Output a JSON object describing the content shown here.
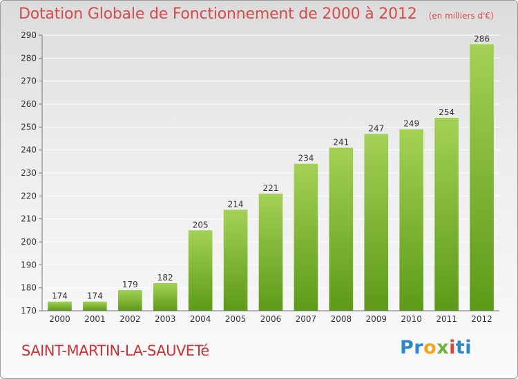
{
  "header": {
    "title": "Dotation Globale de Fonctionnement de 2000 à 2012",
    "unit": "(en milliers d'€)"
  },
  "footer": {
    "commune": "SAINT-MARTIN-LA-SAUVETé",
    "logo": {
      "text": "Proxiti",
      "letters": [
        "P",
        "r",
        "o",
        "x",
        "i",
        "t",
        "i"
      ],
      "colors": [
        "#2f86c8",
        "#2f86c8",
        "#f2a51c",
        "#6db33f",
        "#e0473f",
        "#2f86c8",
        "#2f86c8"
      ]
    }
  },
  "chart_data": {
    "type": "bar",
    "title": "Dotation Globale de Fonctionnement de 2000 à 2012",
    "subtitle": "(en milliers d'€)",
    "categories": [
      "2000",
      "2001",
      "2002",
      "2003",
      "2004",
      "2005",
      "2006",
      "2007",
      "2008",
      "2009",
      "2010",
      "2011",
      "2012"
    ],
    "values": [
      174,
      174,
      179,
      182,
      205,
      214,
      221,
      234,
      241,
      247,
      249,
      254,
      286
    ],
    "ylim": [
      170,
      290
    ],
    "yticks": [
      170,
      180,
      190,
      200,
      210,
      220,
      230,
      240,
      250,
      260,
      270,
      280,
      290
    ],
    "xlabel": "",
    "ylabel": "",
    "grid": true,
    "colors": {
      "bar_light": "#a3d156",
      "bar_dark": "#5d9a18",
      "grid": "#ffffff",
      "axis": "#777777"
    }
  }
}
